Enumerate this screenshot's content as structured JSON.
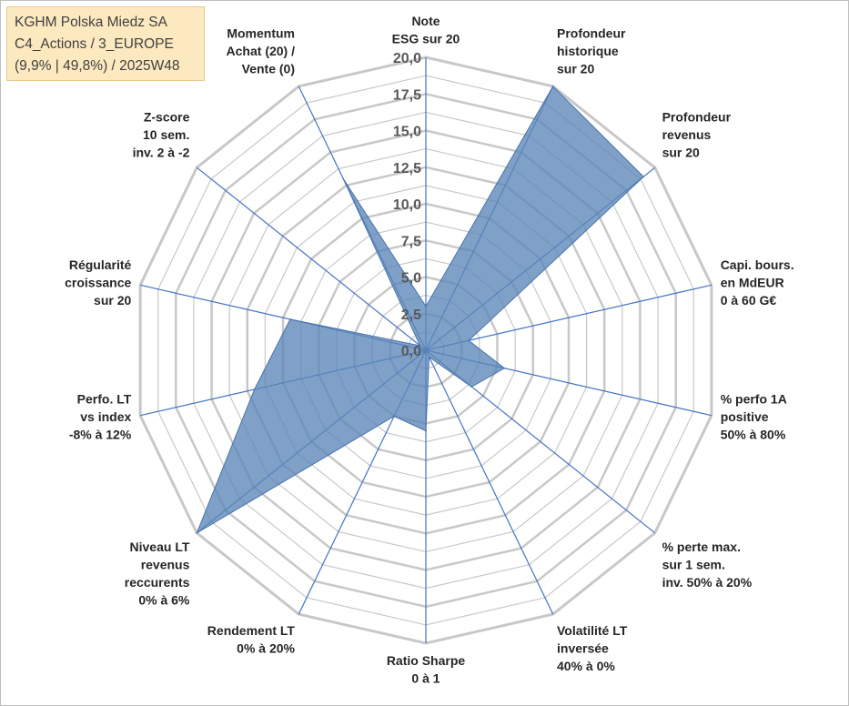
{
  "title_box": {
    "line1": "KGHM Polska Miedz SA",
    "line2": "C4_Actions / 3_EUROPE",
    "line3": "(9,9% | 49,8%) / 2025W48"
  },
  "colors": {
    "fill": "#5b86b8",
    "fill_opacity": 0.78,
    "stroke": "#4a72a8",
    "spoke": "#4472c4",
    "grid": "#c8c8c8",
    "background": "#ffffff",
    "title_bg": "#fde9c0"
  },
  "chart_data": {
    "type": "radar",
    "rmax": 20,
    "rmin": 0,
    "tick_values": [
      0,
      2.5,
      5,
      7.5,
      10,
      12.5,
      15,
      17.5,
      20
    ],
    "tick_labels": [
      "0,0",
      "2,5",
      "5,0",
      "7,5",
      "10,0",
      "12,5",
      "15,0",
      "17,5",
      "20,0"
    ],
    "grid": true,
    "axes": [
      {
        "lines": [
          "Note",
          "ESG sur 20"
        ]
      },
      {
        "lines": [
          "Profondeur",
          "historique",
          "sur 20"
        ]
      },
      {
        "lines": [
          "Profondeur",
          "revenus",
          "sur 20"
        ]
      },
      {
        "lines": [
          "Capi. bours.",
          "en MdEUR",
          "0 à 60 G€"
        ]
      },
      {
        "lines": [
          "% perfo 1A",
          "positive",
          "50% à 80%"
        ]
      },
      {
        "lines": [
          "% perte max.",
          "sur 1 sem.",
          "inv. 50% à 20%"
        ]
      },
      {
        "lines": [
          "Volatilité LT",
          "inversée",
          "40% à 0%"
        ]
      },
      {
        "lines": [
          "Ratio Sharpe",
          "0 à 1"
        ]
      },
      {
        "lines": [
          "Rendement LT",
          "0% à 20%"
        ]
      },
      {
        "lines": [
          "Niveau LT",
          "revenus",
          "reccurents",
          "0% à 6%"
        ]
      },
      {
        "lines": [
          "Perfo. LT",
          "vs index",
          "-8% à 12%"
        ]
      },
      {
        "lines": [
          "Régularité",
          "croissance",
          "sur 20"
        ]
      },
      {
        "lines": [
          "Z-score",
          "10 sem.",
          "inv. 2 à -2"
        ]
      },
      {
        "lines": [
          "Momentum",
          "Achat (20) /",
          "Vente (0)"
        ]
      }
    ],
    "values": [
      3.0,
      20.0,
      19.0,
      3.0,
      5.5,
      4.0,
      0.5,
      5.5,
      5.0,
      20.0,
      12.0,
      9.5,
      0.5,
      13.0
    ]
  }
}
